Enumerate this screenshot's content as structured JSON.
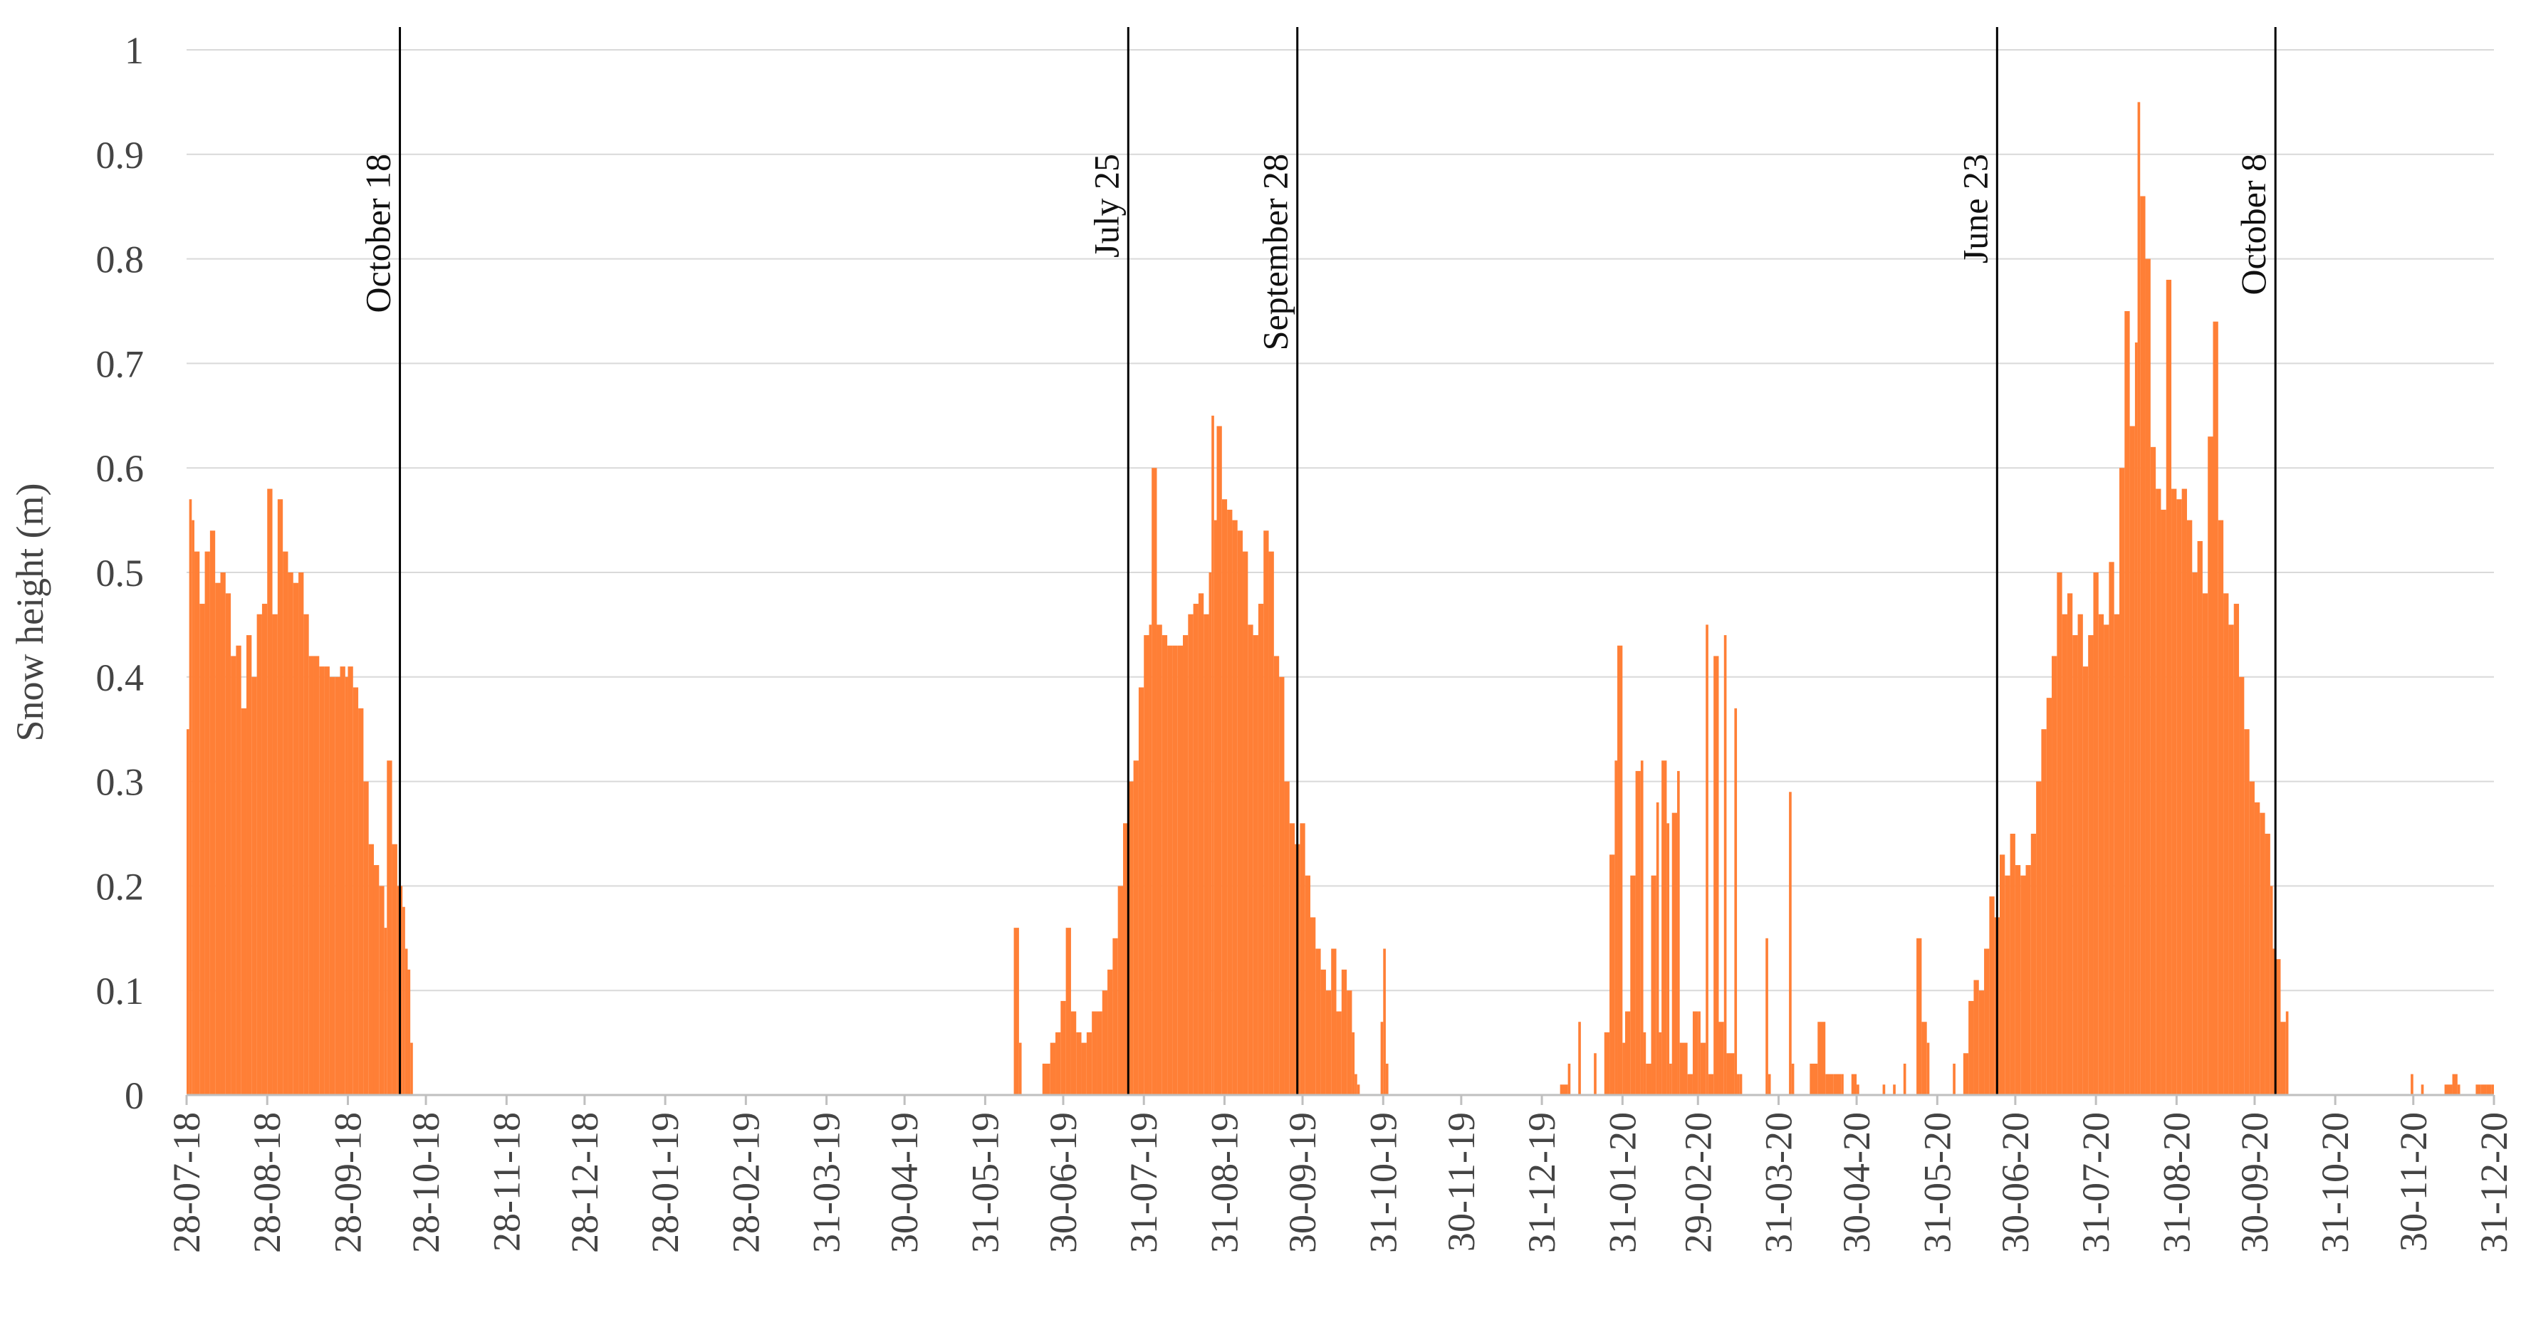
{
  "chart_data": {
    "type": "bar",
    "title": "",
    "xlabel": "",
    "ylabel": "Snow height (m)",
    "ylim": [
      0,
      1
    ],
    "grid": true,
    "legend": "none",
    "series_color": "#FF7F36",
    "y_ticks": [
      "0",
      "0.1",
      "0.2",
      "0.3",
      "0.4",
      "0.5",
      "0.6",
      "0.7",
      "0.8",
      "0.9",
      "1"
    ],
    "x_range": [
      "2018-07-28",
      "2020-12-31"
    ],
    "x_ticks": [
      {
        "date": "2018-07-28",
        "label": "28-07-18"
      },
      {
        "date": "2018-08-28",
        "label": "28-08-18"
      },
      {
        "date": "2018-09-28",
        "label": "28-09-18"
      },
      {
        "date": "2018-10-28",
        "label": "28-10-18"
      },
      {
        "date": "2018-11-28",
        "label": "28-11-18"
      },
      {
        "date": "2018-12-28",
        "label": "28-12-18"
      },
      {
        "date": "2019-01-28",
        "label": "28-01-19"
      },
      {
        "date": "2019-02-28",
        "label": "28-02-19"
      },
      {
        "date": "2019-03-31",
        "label": "31-03-19"
      },
      {
        "date": "2019-04-30",
        "label": "30-04-19"
      },
      {
        "date": "2019-05-31",
        "label": "31-05-19"
      },
      {
        "date": "2019-06-30",
        "label": "30-06-19"
      },
      {
        "date": "2019-07-31",
        "label": "31-07-19"
      },
      {
        "date": "2019-08-31",
        "label": "31-08-19"
      },
      {
        "date": "2019-09-30",
        "label": "30-09-19"
      },
      {
        "date": "2019-10-31",
        "label": "31-10-19"
      },
      {
        "date": "2019-11-30",
        "label": "30-11-19"
      },
      {
        "date": "2019-12-31",
        "label": "31-12-19"
      },
      {
        "date": "2020-01-31",
        "label": "31-01-20"
      },
      {
        "date": "2020-02-29",
        "label": "29-02-20"
      },
      {
        "date": "2020-03-31",
        "label": "31-03-20"
      },
      {
        "date": "2020-04-30",
        "label": "30-04-20"
      },
      {
        "date": "2020-05-31",
        "label": "31-05-20"
      },
      {
        "date": "2020-06-30",
        "label": "30-06-20"
      },
      {
        "date": "2020-07-31",
        "label": "31-07-20"
      },
      {
        "date": "2020-08-31",
        "label": "31-08-20"
      },
      {
        "date": "2020-09-30",
        "label": "30-09-20"
      },
      {
        "date": "2020-10-31",
        "label": "31-10-20"
      },
      {
        "date": "2020-11-30",
        "label": "30-11-20"
      },
      {
        "date": "2020-12-31",
        "label": "31-12-20"
      }
    ],
    "annotations": [
      {
        "date": "2018-10-18",
        "label": "October 18"
      },
      {
        "date": "2019-07-25",
        "label": "July 25"
      },
      {
        "date": "2019-09-28",
        "label": "September 28"
      },
      {
        "date": "2020-06-23",
        "label": "June 23"
      },
      {
        "date": "2020-10-08",
        "label": "October 8"
      }
    ],
    "points": [
      [
        "2018-07-28",
        0.35
      ],
      [
        "2018-07-29",
        0.57
      ],
      [
        "2018-07-30",
        0.55
      ],
      [
        "2018-07-31",
        0.52
      ],
      [
        "2018-08-02",
        0.47
      ],
      [
        "2018-08-04",
        0.52
      ],
      [
        "2018-08-06",
        0.54
      ],
      [
        "2018-08-08",
        0.49
      ],
      [
        "2018-08-10",
        0.5
      ],
      [
        "2018-08-12",
        0.48
      ],
      [
        "2018-08-14",
        0.42
      ],
      [
        "2018-08-16",
        0.43
      ],
      [
        "2018-08-18",
        0.37
      ],
      [
        "2018-08-20",
        0.44
      ],
      [
        "2018-08-22",
        0.4
      ],
      [
        "2018-08-24",
        0.46
      ],
      [
        "2018-08-26",
        0.47
      ],
      [
        "2018-08-28",
        0.58
      ],
      [
        "2018-08-30",
        0.46
      ],
      [
        "2018-09-01",
        0.57
      ],
      [
        "2018-09-03",
        0.52
      ],
      [
        "2018-09-05",
        0.5
      ],
      [
        "2018-09-07",
        0.49
      ],
      [
        "2018-09-09",
        0.5
      ],
      [
        "2018-09-11",
        0.46
      ],
      [
        "2018-09-13",
        0.42
      ],
      [
        "2018-09-15",
        0.42
      ],
      [
        "2018-09-17",
        0.41
      ],
      [
        "2018-09-19",
        0.41
      ],
      [
        "2018-09-21",
        0.4
      ],
      [
        "2018-09-23",
        0.4
      ],
      [
        "2018-09-25",
        0.41
      ],
      [
        "2018-09-27",
        0.4
      ],
      [
        "2018-09-28",
        0.41
      ],
      [
        "2018-09-30",
        0.39
      ],
      [
        "2018-10-02",
        0.37
      ],
      [
        "2018-10-04",
        0.3
      ],
      [
        "2018-10-06",
        0.24
      ],
      [
        "2018-10-08",
        0.22
      ],
      [
        "2018-10-10",
        0.2
      ],
      [
        "2018-10-12",
        0.16
      ],
      [
        "2018-10-13",
        0.32
      ],
      [
        "2018-10-15",
        0.24
      ],
      [
        "2018-10-17",
        0.2
      ],
      [
        "2018-10-19",
        0.18
      ],
      [
        "2018-10-20",
        0.14
      ],
      [
        "2018-10-21",
        0.12
      ],
      [
        "2018-10-22",
        0.05
      ],
      [
        "2019-06-11",
        0.16
      ],
      [
        "2019-06-13",
        0.05
      ],
      [
        "2019-06-22",
        0.03
      ],
      [
        "2019-06-25",
        0.05
      ],
      [
        "2019-06-27",
        0.06
      ],
      [
        "2019-06-29",
        0.09
      ],
      [
        "2019-07-01",
        0.16
      ],
      [
        "2019-07-03",
        0.08
      ],
      [
        "2019-07-05",
        0.06
      ],
      [
        "2019-07-07",
        0.05
      ],
      [
        "2019-07-09",
        0.06
      ],
      [
        "2019-07-11",
        0.08
      ],
      [
        "2019-07-13",
        0.08
      ],
      [
        "2019-07-15",
        0.1
      ],
      [
        "2019-07-17",
        0.12
      ],
      [
        "2019-07-19",
        0.15
      ],
      [
        "2019-07-21",
        0.2
      ],
      [
        "2019-07-23",
        0.26
      ],
      [
        "2019-07-25",
        0.3
      ],
      [
        "2019-07-27",
        0.32
      ],
      [
        "2019-07-29",
        0.39
      ],
      [
        "2019-07-31",
        0.44
      ],
      [
        "2019-08-02",
        0.45
      ],
      [
        "2019-08-03",
        0.6
      ],
      [
        "2019-08-05",
        0.45
      ],
      [
        "2019-08-07",
        0.44
      ],
      [
        "2019-08-09",
        0.43
      ],
      [
        "2019-08-11",
        0.43
      ],
      [
        "2019-08-13",
        0.43
      ],
      [
        "2019-08-15",
        0.44
      ],
      [
        "2019-08-17",
        0.46
      ],
      [
        "2019-08-19",
        0.47
      ],
      [
        "2019-08-21",
        0.48
      ],
      [
        "2019-08-23",
        0.46
      ],
      [
        "2019-08-25",
        0.5
      ],
      [
        "2019-08-26",
        0.65
      ],
      [
        "2019-08-27",
        0.55
      ],
      [
        "2019-08-28",
        0.64
      ],
      [
        "2019-08-30",
        0.57
      ],
      [
        "2019-09-01",
        0.56
      ],
      [
        "2019-09-03",
        0.55
      ],
      [
        "2019-09-05",
        0.54
      ],
      [
        "2019-09-07",
        0.52
      ],
      [
        "2019-09-09",
        0.45
      ],
      [
        "2019-09-11",
        0.44
      ],
      [
        "2019-09-13",
        0.47
      ],
      [
        "2019-09-15",
        0.54
      ],
      [
        "2019-09-17",
        0.52
      ],
      [
        "2019-09-19",
        0.42
      ],
      [
        "2019-09-21",
        0.4
      ],
      [
        "2019-09-23",
        0.3
      ],
      [
        "2019-09-25",
        0.26
      ],
      [
        "2019-09-27",
        0.24
      ],
      [
        "2019-09-29",
        0.26
      ],
      [
        "2019-10-01",
        0.21
      ],
      [
        "2019-10-03",
        0.17
      ],
      [
        "2019-10-05",
        0.14
      ],
      [
        "2019-10-07",
        0.12
      ],
      [
        "2019-10-09",
        0.1
      ],
      [
        "2019-10-11",
        0.14
      ],
      [
        "2019-10-13",
        0.08
      ],
      [
        "2019-10-15",
        0.12
      ],
      [
        "2019-10-17",
        0.1
      ],
      [
        "2019-10-19",
        0.06
      ],
      [
        "2019-10-20",
        0.02
      ],
      [
        "2019-10-21",
        0.01
      ],
      [
        "2019-10-30",
        0.07
      ],
      [
        "2019-10-31",
        0.14
      ],
      [
        "2019-11-01",
        0.03
      ],
      [
        "2020-01-07",
        0.01
      ],
      [
        "2020-01-10",
        0.03
      ],
      [
        "2020-01-14",
        0.07
      ],
      [
        "2020-01-20",
        0.04
      ],
      [
        "2020-01-24",
        0.06
      ],
      [
        "2020-01-26",
        0.23
      ],
      [
        "2020-01-28",
        0.32
      ],
      [
        "2020-01-29",
        0.43
      ],
      [
        "2020-01-31",
        0.05
      ],
      [
        "2020-02-01",
        0.08
      ],
      [
        "2020-02-03",
        0.21
      ],
      [
        "2020-02-05",
        0.31
      ],
      [
        "2020-02-07",
        0.32
      ],
      [
        "2020-02-08",
        0.06
      ],
      [
        "2020-02-09",
        0.03
      ],
      [
        "2020-02-11",
        0.21
      ],
      [
        "2020-02-13",
        0.28
      ],
      [
        "2020-02-14",
        0.06
      ],
      [
        "2020-02-15",
        0.32
      ],
      [
        "2020-02-17",
        0.26
      ],
      [
        "2020-02-18",
        0.03
      ],
      [
        "2020-02-19",
        0.27
      ],
      [
        "2020-02-21",
        0.31
      ],
      [
        "2020-02-22",
        0.05
      ],
      [
        "2020-02-25",
        0.02
      ],
      [
        "2020-02-27",
        0.08
      ],
      [
        "2020-02-29",
        0.08
      ],
      [
        "2020-03-01",
        0.05
      ],
      [
        "2020-03-03",
        0.45
      ],
      [
        "2020-03-04",
        0.02
      ],
      [
        "2020-03-06",
        0.42
      ],
      [
        "2020-03-08",
        0.07
      ],
      [
        "2020-03-10",
        0.44
      ],
      [
        "2020-03-11",
        0.04
      ],
      [
        "2020-03-14",
        0.37
      ],
      [
        "2020-03-15",
        0.02
      ],
      [
        "2020-03-16",
        0.02
      ],
      [
        "2020-03-26",
        0.15
      ],
      [
        "2020-03-27",
        0.02
      ],
      [
        "2020-04-04",
        0.29
      ],
      [
        "2020-04-05",
        0.03
      ],
      [
        "2020-04-12",
        0.03
      ],
      [
        "2020-04-15",
        0.07
      ],
      [
        "2020-04-18",
        0.02
      ],
      [
        "2020-04-21",
        0.02
      ],
      [
        "2020-04-24",
        0.02
      ],
      [
        "2020-04-28",
        0.02
      ],
      [
        "2020-04-30",
        0.01
      ],
      [
        "2020-05-10",
        0.01
      ],
      [
        "2020-05-14",
        0.01
      ],
      [
        "2020-05-18",
        0.03
      ],
      [
        "2020-05-23",
        0.15
      ],
      [
        "2020-05-25",
        0.07
      ],
      [
        "2020-05-27",
        0.05
      ],
      [
        "2020-06-06",
        0.03
      ],
      [
        "2020-06-10",
        0.04
      ],
      [
        "2020-06-12",
        0.09
      ],
      [
        "2020-06-14",
        0.11
      ],
      [
        "2020-06-16",
        0.1
      ],
      [
        "2020-06-18",
        0.14
      ],
      [
        "2020-06-20",
        0.19
      ],
      [
        "2020-06-22",
        0.17
      ],
      [
        "2020-06-24",
        0.23
      ],
      [
        "2020-06-26",
        0.21
      ],
      [
        "2020-06-28",
        0.25
      ],
      [
        "2020-06-30",
        0.22
      ],
      [
        "2020-07-02",
        0.21
      ],
      [
        "2020-07-04",
        0.22
      ],
      [
        "2020-07-06",
        0.25
      ],
      [
        "2020-07-08",
        0.3
      ],
      [
        "2020-07-10",
        0.35
      ],
      [
        "2020-07-12",
        0.38
      ],
      [
        "2020-07-14",
        0.42
      ],
      [
        "2020-07-16",
        0.5
      ],
      [
        "2020-07-18",
        0.46
      ],
      [
        "2020-07-20",
        0.48
      ],
      [
        "2020-07-22",
        0.44
      ],
      [
        "2020-07-24",
        0.46
      ],
      [
        "2020-07-26",
        0.41
      ],
      [
        "2020-07-28",
        0.44
      ],
      [
        "2020-07-30",
        0.5
      ],
      [
        "2020-08-01",
        0.46
      ],
      [
        "2020-08-03",
        0.45
      ],
      [
        "2020-08-05",
        0.51
      ],
      [
        "2020-08-07",
        0.46
      ],
      [
        "2020-08-09",
        0.6
      ],
      [
        "2020-08-11",
        0.75
      ],
      [
        "2020-08-13",
        0.64
      ],
      [
        "2020-08-15",
        0.72
      ],
      [
        "2020-08-16",
        0.95
      ],
      [
        "2020-08-17",
        0.86
      ],
      [
        "2020-08-19",
        0.8
      ],
      [
        "2020-08-21",
        0.62
      ],
      [
        "2020-08-23",
        0.58
      ],
      [
        "2020-08-25",
        0.56
      ],
      [
        "2020-08-27",
        0.78
      ],
      [
        "2020-08-29",
        0.58
      ],
      [
        "2020-08-31",
        0.57
      ],
      [
        "2020-09-02",
        0.58
      ],
      [
        "2020-09-04",
        0.55
      ],
      [
        "2020-09-06",
        0.5
      ],
      [
        "2020-09-08",
        0.53
      ],
      [
        "2020-09-10",
        0.48
      ],
      [
        "2020-09-12",
        0.63
      ],
      [
        "2020-09-14",
        0.74
      ],
      [
        "2020-09-16",
        0.55
      ],
      [
        "2020-09-18",
        0.48
      ],
      [
        "2020-09-20",
        0.45
      ],
      [
        "2020-09-22",
        0.47
      ],
      [
        "2020-09-24",
        0.4
      ],
      [
        "2020-09-26",
        0.35
      ],
      [
        "2020-09-28",
        0.3
      ],
      [
        "2020-09-30",
        0.28
      ],
      [
        "2020-10-02",
        0.27
      ],
      [
        "2020-10-04",
        0.25
      ],
      [
        "2020-10-06",
        0.2
      ],
      [
        "2020-10-07",
        0.14
      ],
      [
        "2020-10-08",
        0.13
      ],
      [
        "2020-10-10",
        0.07
      ],
      [
        "2020-10-12",
        0.08
      ],
      [
        "2020-11-29",
        0.02
      ],
      [
        "2020-12-03",
        0.01
      ],
      [
        "2020-12-12",
        0.01
      ],
      [
        "2020-12-15",
        0.02
      ],
      [
        "2020-12-17",
        0.01
      ],
      [
        "2020-12-24",
        0.01
      ],
      [
        "2020-12-26",
        0.01
      ],
      [
        "2020-12-28",
        0.01
      ],
      [
        "2020-12-30",
        0.01
      ]
    ]
  }
}
